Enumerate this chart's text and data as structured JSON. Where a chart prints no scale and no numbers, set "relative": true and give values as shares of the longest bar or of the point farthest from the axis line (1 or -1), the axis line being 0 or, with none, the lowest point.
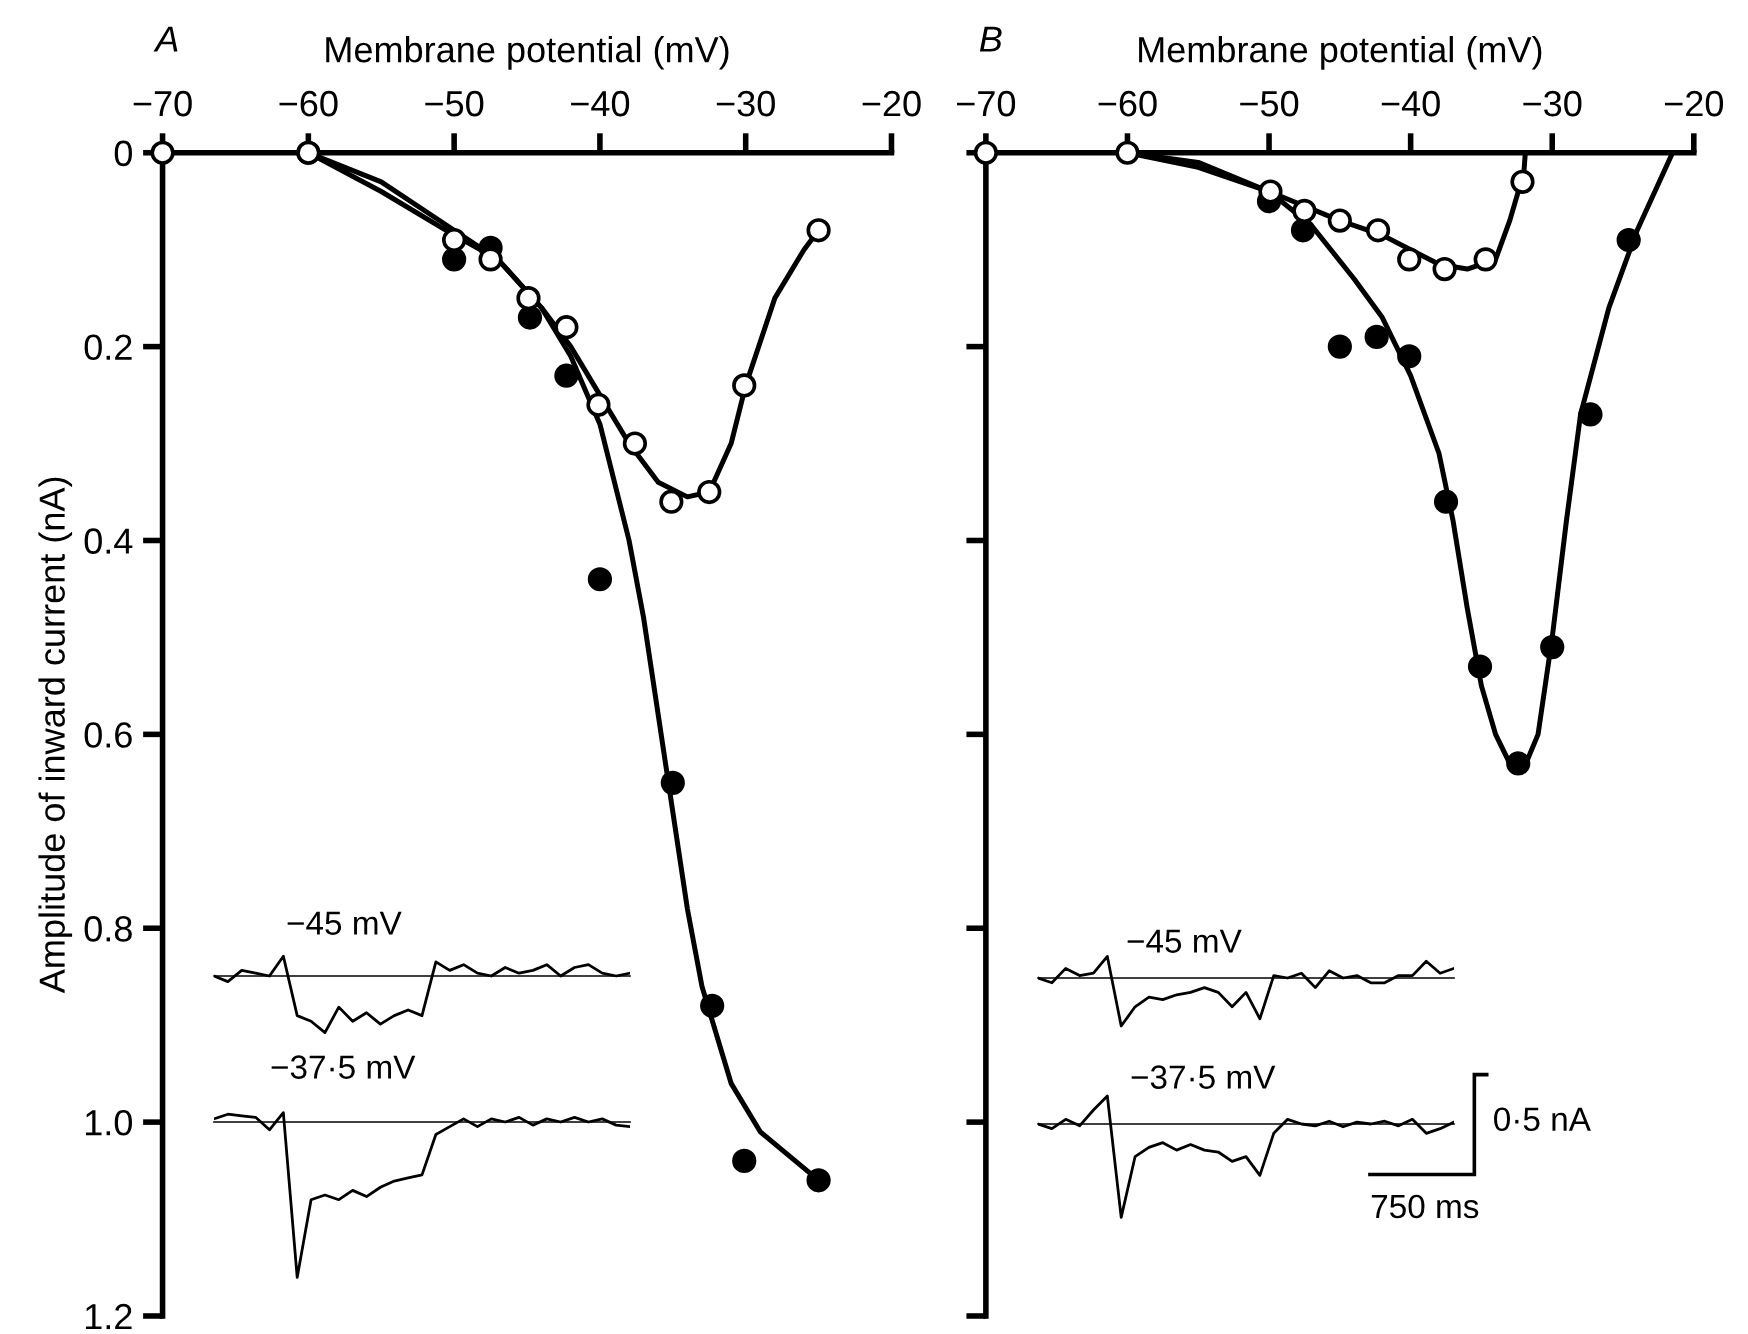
{
  "chart_data": [
    {
      "type": "scatter",
      "title": "A",
      "xlabel": "Membrane potential (mV)",
      "ylabel": "Amplitude of inward current (nA)",
      "xlim": [
        -70,
        -20
      ],
      "xticks": [
        {
          "value": -70,
          "label": "−70"
        },
        {
          "value": -60,
          "label": "−60"
        },
        {
          "value": -50,
          "label": "−50"
        },
        {
          "value": -40,
          "label": "−40"
        },
        {
          "value": -30,
          "label": "−30"
        },
        {
          "value": -20,
          "label": "−20"
        }
      ],
      "ylim": [
        1.2,
        0
      ],
      "yticks": [
        0,
        0.2,
        0.4,
        0.6,
        0.8,
        {
          "value": 1,
          "label": "1.0"
        },
        1.2
      ],
      "marker": "circle",
      "series": [
        {
          "type": "line",
          "marker": "none",
          "color": "#000000",
          "x": [
            -60,
            -55,
            -50,
            -47,
            -44,
            -42,
            -40,
            -38,
            -37,
            -36,
            -35,
            -34,
            -33,
            -31,
            -29,
            -25
          ],
          "values": [
            0,
            0.03,
            0.08,
            0.11,
            0.16,
            0.21,
            0.28,
            0.4,
            0.48,
            0.58,
            0.68,
            0.78,
            0.86,
            0.96,
            1.01,
            1.06
          ]
        },
        {
          "type": "line",
          "marker": "none",
          "color": "#000000",
          "x": [
            -60,
            -55,
            -50,
            -47,
            -44,
            -42,
            -40,
            -38,
            -36,
            -34,
            -32.5,
            -31,
            -30,
            -28,
            -26,
            -25
          ],
          "values": [
            0,
            0.04,
            0.085,
            0.11,
            0.16,
            0.2,
            0.25,
            0.3,
            0.34,
            0.355,
            0.35,
            0.3,
            0.24,
            0.15,
            0.1,
            0.08
          ]
        },
        {
          "type": "scatter",
          "color": "#000000",
          "x": [
            -60,
            -50,
            -47.5,
            -44.8,
            -42.3,
            -40,
            -35,
            -32.3,
            -30.1,
            -25
          ],
          "values": [
            0,
            0.11,
            0.098,
            0.17,
            0.23,
            0.44,
            0.65,
            0.88,
            1.04,
            1.06
          ]
        },
        {
          "type": "scatter",
          "color": "#ffffff",
          "x": [
            -70,
            -60,
            -50,
            -47.5,
            -44.9,
            -42.3,
            -40.1,
            -37.6,
            -35.1,
            -32.5,
            -30.1,
            -25
          ],
          "values": [
            0,
            0,
            0.09,
            0.11,
            0.15,
            0.18,
            0.26,
            0.3,
            0.36,
            0.35,
            0.24,
            0.08
          ]
        }
      ]
    },
    {
      "type": "line",
      "relative": true,
      "title": "−45 mV",
      "categories": [
        null,
        null,
        null,
        null,
        null,
        null,
        null,
        null,
        null,
        null,
        null,
        null,
        null,
        null,
        null,
        null,
        null,
        null,
        null,
        null,
        null,
        null,
        null,
        null,
        null,
        null,
        null,
        null,
        null,
        null,
        null
      ],
      "series": [
        {
          "color": "#000000",
          "values": [
            0,
            -0.1,
            0.1,
            0.05,
            0,
            0.35,
            -0.7,
            -0.8,
            -1.0,
            -0.55,
            -0.8,
            -0.65,
            -0.85,
            -0.7,
            -0.6,
            -0.7,
            0.25,
            0.1,
            0.2,
            0.05,
            0,
            0.15,
            0.05,
            0.1,
            0.2,
            0,
            0.15,
            0.2,
            0.05,
            0,
            0.05
          ]
        }
      ]
    },
    {
      "type": "line",
      "relative": true,
      "title": "−37·5 mV",
      "categories": [
        null,
        null,
        null,
        null,
        null,
        null,
        null,
        null,
        null,
        null,
        null,
        null,
        null,
        null,
        null,
        null,
        null,
        null,
        null,
        null,
        null,
        null,
        null,
        null,
        null,
        null,
        null,
        null,
        null,
        null,
        null
      ],
      "series": [
        {
          "color": "#000000",
          "values": [
            0.02,
            0.05,
            0.04,
            0.03,
            -0.05,
            0.06,
            -1.0,
            -0.5,
            -0.47,
            -0.5,
            -0.44,
            -0.48,
            -0.42,
            -0.38,
            -0.36,
            -0.34,
            -0.08,
            -0.03,
            0.02,
            -0.03,
            0.02,
            0,
            0.03,
            -0.02,
            0.02,
            0,
            0.03,
            0,
            0.02,
            -0.02,
            -0.03
          ]
        }
      ]
    },
    {
      "type": "scatter",
      "title": "B",
      "xlabel": "Membrane potential (mV)",
      "tick_labels": "x",
      "xlim": [
        -70,
        -20
      ],
      "xticks": [
        {
          "value": -70,
          "label": "−70"
        },
        {
          "value": -60,
          "label": "−60"
        },
        {
          "value": -50,
          "label": "−50"
        },
        {
          "value": -40,
          "label": "−40"
        },
        {
          "value": -30,
          "label": "−30"
        },
        {
          "value": -20,
          "label": "−20"
        }
      ],
      "ylim": [
        1.2,
        0
      ],
      "yticks": [
        0,
        0.2,
        0.4,
        0.6,
        0.8,
        1.0,
        1.2
      ],
      "marker": "circle",
      "annotations": [
        "0·5 nA",
        "750 ms"
      ],
      "series": [
        {
          "type": "line",
          "marker": "none",
          "color": "#000000",
          "x": [
            -60,
            -55,
            -50,
            -47,
            -44,
            -42,
            -40,
            -38,
            -37,
            -36,
            -35,
            -34,
            -33,
            -32,
            -31,
            -30,
            -29,
            -28,
            -26,
            -24,
            -21.5
          ],
          "values": [
            0,
            0.01,
            0.04,
            0.075,
            0.13,
            0.17,
            0.23,
            0.31,
            0.38,
            0.47,
            0.55,
            0.6,
            0.63,
            0.635,
            0.6,
            0.5,
            0.38,
            0.27,
            0.16,
            0.08,
            0
          ]
        },
        {
          "type": "line",
          "marker": "none",
          "color": "#000000",
          "x": [
            -60,
            -55,
            -50,
            -45,
            -42,
            -40,
            -38,
            -36,
            -34,
            -33,
            -32,
            -31.9
          ],
          "values": [
            0,
            0.015,
            0.04,
            0.07,
            0.085,
            0.1,
            0.115,
            0.12,
            0.11,
            0.07,
            0.02,
            0
          ]
        },
        {
          "type": "scatter",
          "color": "#000000",
          "x": [
            -50,
            -47.6,
            -45,
            -42.4,
            -40.1,
            -37.5,
            -35.1,
            -32.4,
            -30,
            -27.3,
            -24.6
          ],
          "values": [
            0.05,
            0.08,
            0.2,
            0.19,
            0.21,
            0.36,
            0.53,
            0.63,
            0.51,
            0.27,
            0.09
          ]
        },
        {
          "type": "scatter",
          "color": "#ffffff",
          "x": [
            -70,
            -60,
            -49.9,
            -47.5,
            -45,
            -42.3,
            -40.1,
            -37.6,
            -34.7,
            -32.1
          ],
          "values": [
            0,
            0,
            0.04,
            0.06,
            0.07,
            0.08,
            0.11,
            0.12,
            0.11,
            0.03
          ]
        }
      ]
    },
    {
      "type": "line",
      "relative": true,
      "title": "−45 mV",
      "categories": [
        null,
        null,
        null,
        null,
        null,
        null,
        null,
        null,
        null,
        null,
        null,
        null,
        null,
        null,
        null,
        null,
        null,
        null,
        null,
        null,
        null,
        null,
        null,
        null,
        null,
        null,
        null,
        null,
        null,
        null,
        null
      ],
      "series": [
        {
          "color": "#000000",
          "values": [
            0,
            -0.1,
            0.2,
            0.05,
            0.1,
            0.45,
            -1.0,
            -0.6,
            -0.4,
            -0.45,
            -0.35,
            -0.3,
            -0.2,
            -0.3,
            -0.6,
            -0.3,
            -0.85,
            0.05,
            0,
            0.1,
            -0.2,
            0.15,
            0,
            0.05,
            -0.1,
            -0.1,
            0.05,
            0.05,
            0.35,
            0.1,
            0.2
          ]
        }
      ]
    },
    {
      "type": "line",
      "relative": true,
      "title": "−37·5 mV",
      "categories": [
        null,
        null,
        null,
        null,
        null,
        null,
        null,
        null,
        null,
        null,
        null,
        null,
        null,
        null,
        null,
        null,
        null,
        null,
        null,
        null,
        null,
        null,
        null,
        null,
        null,
        null,
        null,
        null,
        null,
        null,
        null
      ],
      "series": [
        {
          "color": "#000000",
          "values": [
            0,
            -0.05,
            0.05,
            -0.02,
            0.15,
            0.3,
            -1.0,
            -0.35,
            -0.25,
            -0.2,
            -0.28,
            -0.22,
            -0.28,
            -0.3,
            -0.4,
            -0.35,
            -0.55,
            -0.1,
            0.05,
            0,
            -0.02,
            0.03,
            -0.03,
            0.02,
            0,
            0.03,
            -0.02,
            0.05,
            -0.1,
            -0.05,
            0.02
          ]
        }
      ]
    }
  ]
}
